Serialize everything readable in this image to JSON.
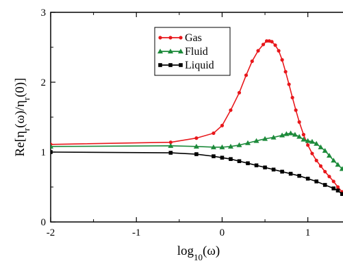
{
  "chart_data": {
    "type": "line",
    "xlabel": {
      "base": "log",
      "sub": "10",
      "tail": "(ω)"
    },
    "ylabel": {
      "a": "Re[η",
      "b": "(ω)/η",
      "c": "(0)]",
      "sub": "r"
    },
    "xlim": [
      -2,
      1.45
    ],
    "ylim": [
      0,
      3
    ],
    "xticks": [
      -2,
      -1,
      0,
      1
    ],
    "yticks": [
      0,
      1,
      2,
      3
    ],
    "xtick_labels": [
      "-2",
      "-1",
      "0",
      "1"
    ],
    "ytick_labels": [
      "0",
      "1",
      "2",
      "3"
    ],
    "legend_position": "top-center",
    "series": [
      {
        "name": "Gas",
        "color": "#e8171b",
        "marker": "circle",
        "x": [
          -2.0,
          -0.6,
          -0.3,
          -0.1,
          0.0,
          0.1,
          0.2,
          0.28,
          0.35,
          0.42,
          0.48,
          0.52,
          0.55,
          0.58,
          0.62,
          0.66,
          0.7,
          0.74,
          0.78,
          0.82,
          0.86,
          0.9,
          0.95,
          1.0,
          1.05,
          1.1,
          1.15,
          1.2,
          1.25,
          1.3,
          1.35,
          1.4,
          1.45
        ],
        "y": [
          1.11,
          1.14,
          1.2,
          1.27,
          1.38,
          1.6,
          1.85,
          2.1,
          2.3,
          2.45,
          2.54,
          2.59,
          2.59,
          2.58,
          2.53,
          2.45,
          2.32,
          2.15,
          1.97,
          1.78,
          1.6,
          1.43,
          1.25,
          1.1,
          0.98,
          0.88,
          0.8,
          0.72,
          0.65,
          0.58,
          0.5,
          0.43,
          0.36
        ]
      },
      {
        "name": "Fluid",
        "color": "#1c8a3a",
        "marker": "triangle",
        "x": [
          -2.0,
          -0.6,
          -0.3,
          -0.1,
          0.0,
          0.1,
          0.2,
          0.3,
          0.4,
          0.5,
          0.6,
          0.7,
          0.75,
          0.8,
          0.85,
          0.9,
          0.95,
          1.0,
          1.05,
          1.1,
          1.15,
          1.2,
          1.25,
          1.3,
          1.35,
          1.4,
          1.45
        ],
        "y": [
          1.08,
          1.09,
          1.08,
          1.07,
          1.07,
          1.08,
          1.1,
          1.13,
          1.16,
          1.19,
          1.21,
          1.24,
          1.26,
          1.27,
          1.25,
          1.22,
          1.18,
          1.16,
          1.15,
          1.12,
          1.07,
          1.02,
          0.95,
          0.88,
          0.82,
          0.76,
          0.68
        ]
      },
      {
        "name": "Liquid",
        "color": "#000000",
        "marker": "square",
        "x": [
          -2.0,
          -0.6,
          -0.3,
          -0.1,
          0.0,
          0.1,
          0.2,
          0.3,
          0.4,
          0.5,
          0.6,
          0.7,
          0.8,
          0.9,
          1.0,
          1.1,
          1.2,
          1.3,
          1.35,
          1.4,
          1.45
        ],
        "y": [
          1.0,
          0.99,
          0.97,
          0.94,
          0.92,
          0.9,
          0.87,
          0.84,
          0.81,
          0.78,
          0.75,
          0.72,
          0.69,
          0.66,
          0.62,
          0.58,
          0.53,
          0.48,
          0.45,
          0.4,
          0.35
        ]
      }
    ]
  }
}
